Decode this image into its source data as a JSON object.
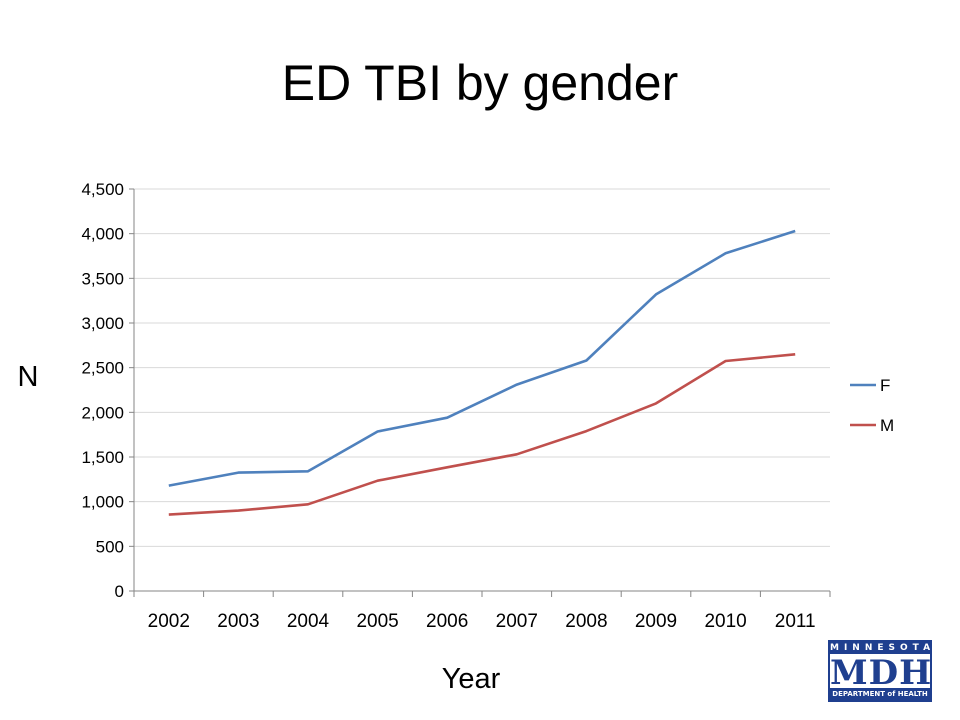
{
  "chart_data": {
    "type": "line",
    "title": "ED TBI by gender",
    "xlabel": "Year",
    "ylabel": "N",
    "categories": [
      "2002",
      "2003",
      "2004",
      "2005",
      "2006",
      "2007",
      "2008",
      "2009",
      "2010",
      "2011"
    ],
    "ylim": [
      0,
      4500
    ],
    "yticks": [
      "0",
      "500",
      "1,000",
      "1,500",
      "2,000",
      "2,500",
      "3,000",
      "3,500",
      "4,000",
      "4,500"
    ],
    "grid": true,
    "legend_position": "right",
    "series": [
      {
        "name": "F",
        "color": "#4f81bd",
        "values": [
          1180,
          1325,
          1340,
          1785,
          1940,
          2310,
          2580,
          3320,
          3780,
          4030
        ]
      },
      {
        "name": "M",
        "color": "#c0504d",
        "values": [
          855,
          900,
          970,
          1235,
          1385,
          1530,
          1790,
          2100,
          2575,
          2650
        ]
      }
    ]
  },
  "logo": {
    "top": "MINNESOTA",
    "main": "MDH",
    "bottom": "DEPARTMENT of HEALTH"
  }
}
